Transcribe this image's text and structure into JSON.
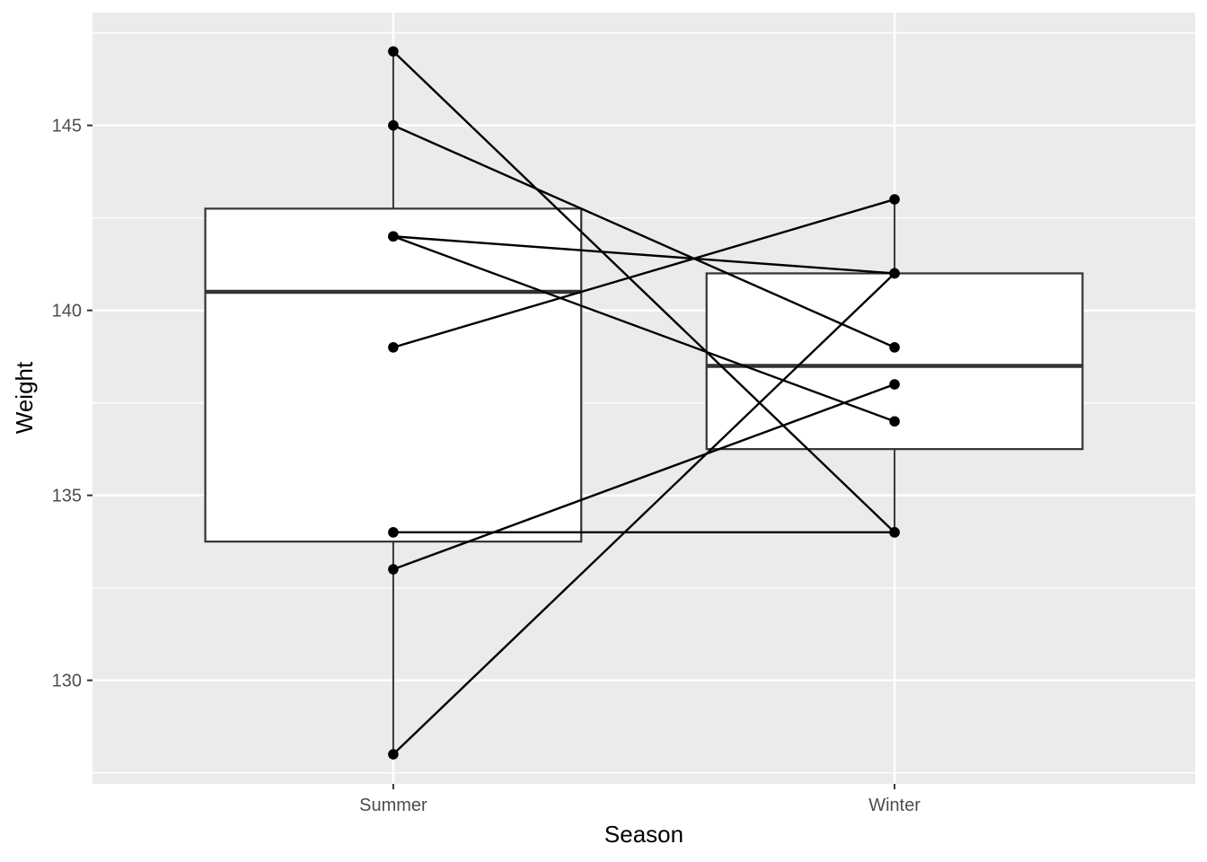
{
  "chart_data": {
    "type": "boxplot",
    "xlabel": "Season",
    "ylabel": "Weight",
    "categories": [
      "Summer",
      "Winter"
    ],
    "ylim": [
      127.2,
      148.05
    ],
    "yticks": [
      130,
      135,
      140,
      145
    ],
    "grid": true,
    "boxes": [
      {
        "category": "Summer",
        "lower_whisker": 128,
        "q1": 133.75,
        "median": 140.5,
        "q3": 142.75,
        "upper_whisker": 147
      },
      {
        "category": "Winter",
        "lower_whisker": 134,
        "q1": 136.25,
        "median": 138.5,
        "q3": 141,
        "upper_whisker": 143
      }
    ],
    "pairs": [
      {
        "summer": 147,
        "winter": 134
      },
      {
        "summer": 145,
        "winter": 139
      },
      {
        "summer": 142,
        "winter": 141
      },
      {
        "summer": 142,
        "winter": 137
      },
      {
        "summer": 139,
        "winter": 143
      },
      {
        "summer": 134,
        "winter": 134
      },
      {
        "summer": 133,
        "winter": 138
      },
      {
        "summer": 128,
        "winter": 141
      }
    ],
    "colors": {
      "panel_background": "#ebebeb",
      "grid": "#ffffff",
      "box_fill": "#ffffff",
      "box_outline": "#333333",
      "point": "#000000",
      "line": "#000000"
    }
  }
}
